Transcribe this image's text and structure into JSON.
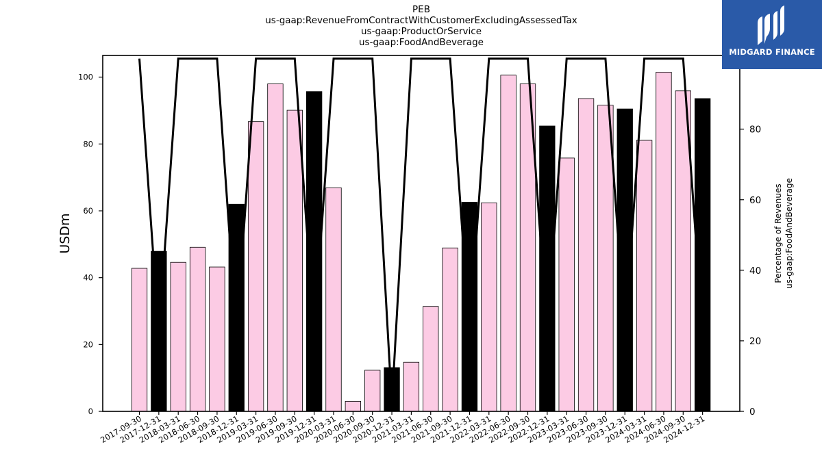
{
  "title_lines": [
    "PEB",
    "us-gaap:RevenueFromContractWithCustomerExcludingAssessedTax",
    "us-gaap:ProductOrService",
    "us-gaap:FoodAndBeverage"
  ],
  "logo": {
    "text": "MIDGARD FINANCE",
    "background": "#2a5aa8"
  },
  "chart_data": {
    "type": "bar",
    "title": "PEB us-gaap:RevenueFromContractWithCustomerExcludingAssessedTax us-gaap:ProductOrService us-gaap:FoodAndBeverage",
    "ylabel": "USDm",
    "y2label_lines": [
      "Percentage of Revenues",
      "us-gaap:FoodAndBeverage"
    ],
    "ylim": [
      0,
      106.5
    ],
    "y2lim": [
      0,
      100.9
    ],
    "yticks": [
      0,
      20,
      40,
      60,
      80,
      100
    ],
    "y2ticks": [
      0,
      20,
      40,
      60,
      80,
      100
    ],
    "categories": [
      "2017-09-30",
      "2017-12-31",
      "2018-03-31",
      "2018-06-30",
      "2018-09-30",
      "2018-12-31",
      "2019-03-31",
      "2019-06-30",
      "2019-09-30",
      "2019-12-31",
      "2020-03-31",
      "2020-06-30",
      "2020-09-30",
      "2020-12-31",
      "2021-03-31",
      "2021-06-30",
      "2021-09-30",
      "2021-12-31",
      "2022-03-31",
      "2022-06-30",
      "2022-09-30",
      "2022-12-31",
      "2023-03-31",
      "2023-06-30",
      "2023-09-30",
      "2023-12-31",
      "2024-03-31",
      "2024-06-30",
      "2024-09-30",
      "2024-12-31"
    ],
    "series": [
      {
        "type": "bar",
        "values": [
          42.8,
          47.9,
          44.6,
          49.1,
          43.2,
          62.0,
          86.7,
          98.0,
          90.1,
          95.7,
          66.9,
          3.0,
          12.3,
          13.1,
          14.7,
          31.4,
          48.9,
          62.6,
          62.4,
          100.6,
          98.0,
          85.4,
          75.8,
          93.6,
          91.6,
          90.5,
          81.1,
          101.5,
          95.9,
          93.6
        ],
        "colors": [
          "#fccbe4",
          "#000000",
          "#fccbe4",
          "#fccbe4",
          "#fccbe4",
          "#000000",
          "#fccbe4",
          "#fccbe4",
          "#fccbe4",
          "#000000",
          "#fccbe4",
          "#fccbe4",
          "#fccbe4",
          "#000000",
          "#fccbe4",
          "#fccbe4",
          "#fccbe4",
          "#000000",
          "#fccbe4",
          "#fccbe4",
          "#fccbe4",
          "#000000",
          "#fccbe4",
          "#fccbe4",
          "#fccbe4",
          "#000000",
          "#fccbe4",
          "#fccbe4",
          "#fccbe4",
          "#000000"
        ]
      },
      {
        "type": "line",
        "axis": "right",
        "color": "#000000",
        "values": [
          100,
          22,
          100,
          100,
          100,
          22,
          100,
          100,
          100,
          22,
          100,
          100,
          100,
          2,
          100,
          100,
          100,
          22,
          100,
          100,
          100,
          22,
          100,
          100,
          100,
          22,
          100,
          100,
          100,
          22
        ]
      }
    ],
    "grid": false,
    "legend": "none"
  }
}
